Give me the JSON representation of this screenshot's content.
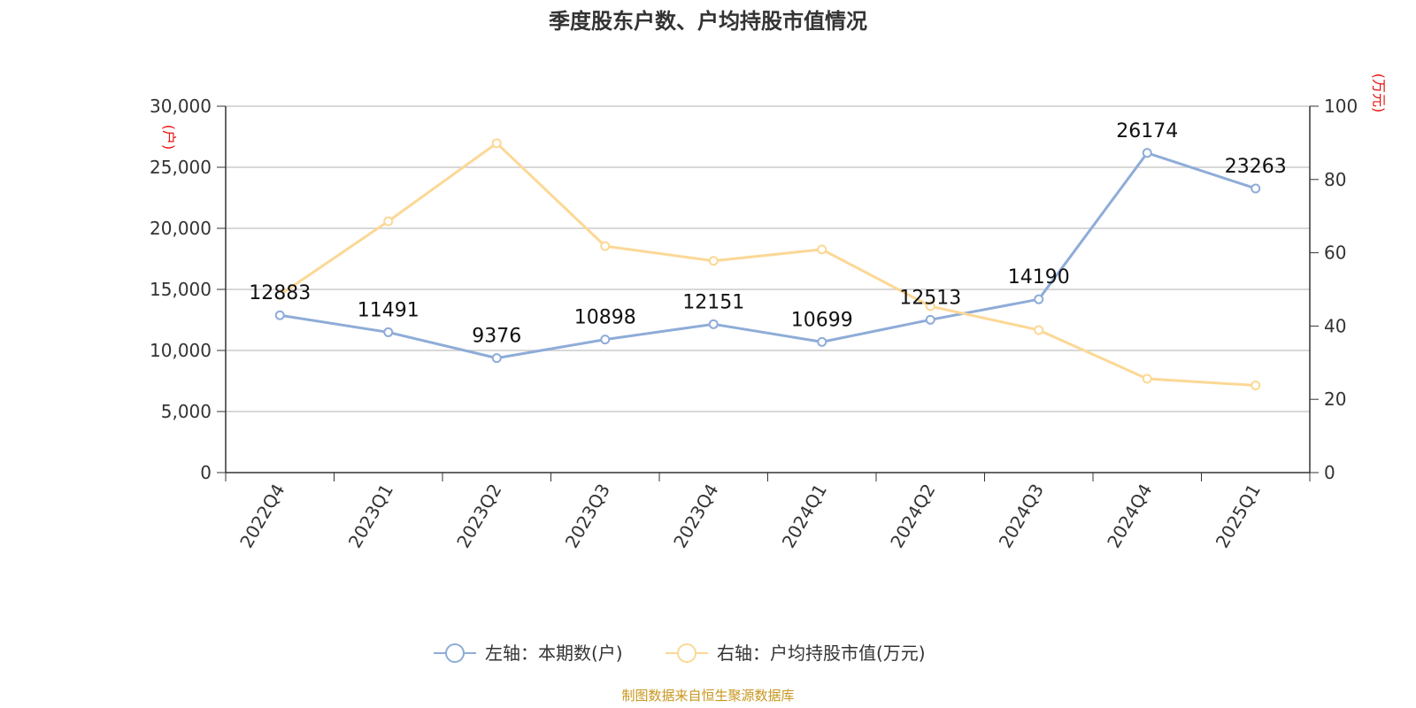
{
  "colors": {
    "series_left": "#8eacd8",
    "series_right": "#fcd896",
    "grid": "#cccccc",
    "axis": "#333333",
    "unit": "#e8100c",
    "source": "#c8961e"
  },
  "chart_data": {
    "type": "line",
    "title": "季度股东户数、户均持股市值情况",
    "categories": [
      "2022Q4",
      "2023Q1",
      "2023Q2",
      "2023Q3",
      "2023Q4",
      "2024Q1",
      "2024Q2",
      "2024Q3",
      "2024Q4",
      "2025Q1"
    ],
    "y_left": {
      "unit": "(户)",
      "range": [
        0,
        30000
      ],
      "ticks": [
        {
          "value": 0,
          "label": "0"
        },
        {
          "value": 5000,
          "label": "5,000"
        },
        {
          "value": 10000,
          "label": "10,000"
        },
        {
          "value": 15000,
          "label": "15,000"
        },
        {
          "value": 20000,
          "label": "20,000"
        },
        {
          "value": 25000,
          "label": "25,000"
        },
        {
          "value": 30000,
          "label": "30,000"
        }
      ]
    },
    "y_right": {
      "unit": "(万元)",
      "range": [
        0,
        100
      ],
      "ticks": [
        {
          "value": 0,
          "label": "0"
        },
        {
          "value": 20,
          "label": "20"
        },
        {
          "value": 40,
          "label": "40"
        },
        {
          "value": 60,
          "label": "60"
        },
        {
          "value": 80,
          "label": "80"
        },
        {
          "value": 100,
          "label": "100"
        }
      ]
    },
    "series": [
      {
        "name": "左轴：本期数(户)",
        "axis": "left",
        "values": [
          12883,
          11491,
          9376,
          10898,
          12151,
          10699,
          12513,
          14190,
          26174,
          23263
        ],
        "labels": [
          "12883",
          "11491",
          "9376",
          "10898",
          "12151",
          "10699",
          "12513",
          "14190",
          "26174",
          "23263"
        ]
      },
      {
        "name": "右轴：户均持股市值(万元)",
        "axis": "right",
        "values": [
          48.5,
          68.6,
          89.9,
          61.8,
          57.8,
          60.9,
          45.4,
          38.9,
          25.6,
          23.8
        ]
      }
    ],
    "grid": true,
    "legend": "bottom-center"
  },
  "source_note": "制图数据来自恒生聚源数据库"
}
